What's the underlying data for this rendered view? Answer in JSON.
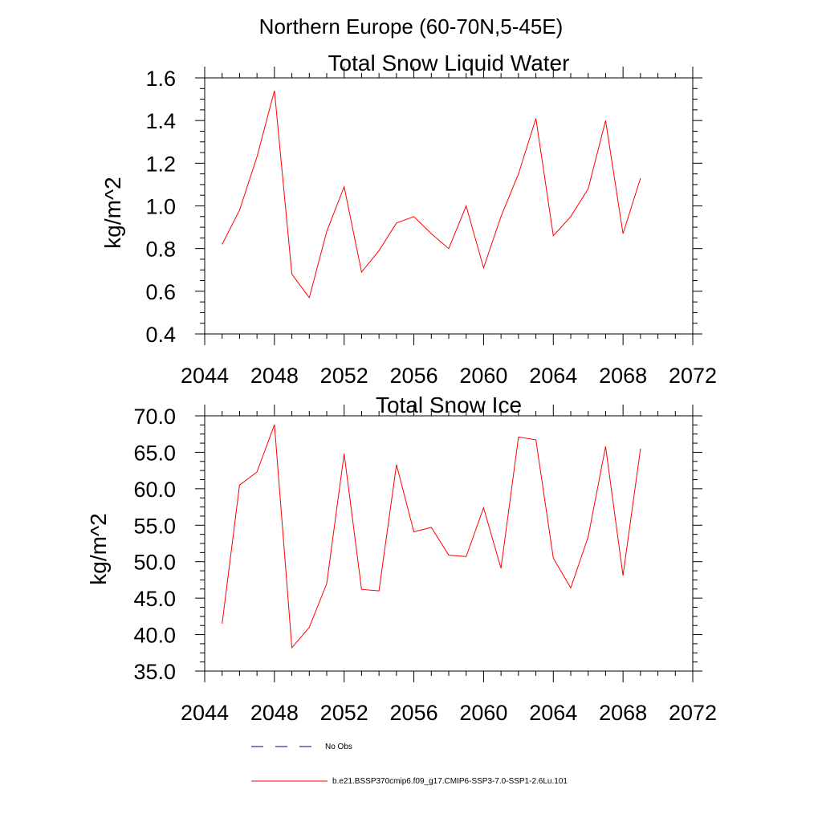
{
  "suptitle": "Northern Europe (60-70N,5-45E)",
  "colors": {
    "series": "#ff0000",
    "no_obs": "#000080",
    "axis": "#000000"
  },
  "legend": [
    {
      "label": "No Obs",
      "style": "dashed",
      "color": "#000080"
    },
    {
      "label": "b.e21.BSSP370cmip6.f09_g17.CMIP6-SSP3-7.0-SSP1-2.6Lu.101",
      "style": "solid",
      "color": "#ff0000"
    }
  ],
  "chart_data": [
    {
      "type": "line",
      "title": "Total Snow Liquid Water",
      "xlabel": "",
      "ylabel": "kg/m^2",
      "xlim": [
        2044,
        2072
      ],
      "ylim": [
        0.4,
        1.6
      ],
      "xticks": [
        "2044",
        "2048",
        "2052",
        "2056",
        "2060",
        "2064",
        "2068",
        "2072"
      ],
      "yticks": [
        "0.4",
        "0.6",
        "0.8",
        "1.0",
        "1.2",
        "1.4",
        "1.6"
      ],
      "grid": false,
      "series": [
        {
          "name": "b.e21.BSSP370cmip6.f09_g17.CMIP6-SSP3-7.0-SSP1-2.6Lu.101",
          "x": [
            2045,
            2046,
            2047,
            2048,
            2049,
            2050,
            2051,
            2052,
            2053,
            2054,
            2055,
            2056,
            2057,
            2058,
            2059,
            2060,
            2061,
            2062,
            2063,
            2064,
            2065,
            2066,
            2067,
            2068,
            2069
          ],
          "y": [
            0.82,
            0.98,
            1.23,
            1.54,
            0.68,
            0.57,
            0.88,
            1.09,
            0.69,
            0.79,
            0.92,
            0.95,
            0.87,
            0.8,
            1.0,
            0.71,
            0.95,
            1.15,
            1.41,
            0.86,
            0.95,
            1.08,
            1.4,
            0.87,
            1.13
          ]
        }
      ]
    },
    {
      "type": "line",
      "title": "Total Snow Ice",
      "xlabel": "",
      "ylabel": "kg/m^2",
      "xlim": [
        2044,
        2072
      ],
      "ylim": [
        35.0,
        70.0
      ],
      "xticks": [
        "2044",
        "2048",
        "2052",
        "2056",
        "2060",
        "2064",
        "2068",
        "2072"
      ],
      "yticks": [
        "35.0",
        "40.0",
        "45.0",
        "50.0",
        "55.0",
        "60.0",
        "65.0",
        "70.0"
      ],
      "grid": false,
      "series": [
        {
          "name": "b.e21.BSSP370cmip6.f09_g17.CMIP6-SSP3-7.0-SSP1-2.6Lu.101",
          "x": [
            2045,
            2046,
            2047,
            2048,
            2049,
            2050,
            2051,
            2052,
            2053,
            2054,
            2055,
            2056,
            2057,
            2058,
            2059,
            2060,
            2061,
            2062,
            2063,
            2064,
            2065,
            2066,
            2067,
            2068,
            2069
          ],
          "y": [
            41.5,
            60.5,
            62.3,
            68.8,
            38.2,
            41.0,
            47.0,
            64.8,
            46.2,
            46.0,
            63.3,
            54.1,
            54.7,
            50.9,
            50.7,
            57.4,
            49.1,
            67.1,
            66.7,
            50.5,
            46.4,
            53.4,
            65.8,
            48.1,
            65.5
          ]
        }
      ]
    }
  ]
}
